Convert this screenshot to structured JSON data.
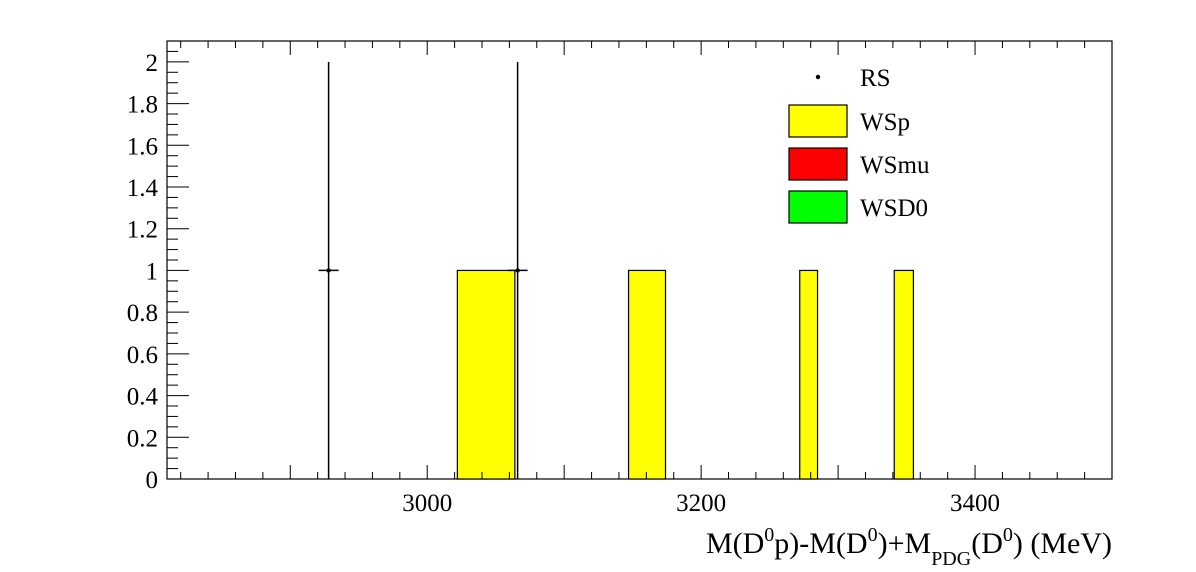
{
  "chart_data": {
    "type": "bar",
    "xlabel": {
      "parts": [
        "M(D",
        "0",
        "p)-M(D",
        "0",
        ")+M",
        "PDG",
        "(D",
        "0",
        ") (MeV)"
      ]
    },
    "ylabel": "",
    "xlim": [
      2810,
      3500
    ],
    "ylim": [
      0,
      2.1
    ],
    "x_ticks": [
      3000,
      3200,
      3400
    ],
    "x_tick_labels": [
      "3000",
      "3200",
      "3400"
    ],
    "y_ticks": [
      0,
      0.2,
      0.4,
      0.6,
      0.8,
      1,
      1.2,
      1.4,
      1.6,
      1.8,
      2
    ],
    "y_tick_labels": [
      "0",
      "0.2",
      "0.4",
      "0.6",
      "0.8",
      "1",
      "1.2",
      "1.4",
      "1.6",
      "1.8",
      "2"
    ],
    "series": [
      {
        "name": "RS",
        "kind": "points",
        "color": "#000000",
        "points": [
          {
            "x": 2928,
            "y": 1,
            "yerr_low": 1,
            "yerr_high": 1
          },
          {
            "x": 3066,
            "y": 1,
            "yerr_low": 1,
            "yerr_high": 1
          }
        ]
      },
      {
        "name": "WSp",
        "kind": "bars",
        "color": "#ffff00",
        "bars": [
          {
            "x0": 3022,
            "x1": 3064,
            "value": 1
          },
          {
            "x0": 3147,
            "x1": 3174,
            "value": 1
          },
          {
            "x0": 3272,
            "x1": 3285,
            "value": 1
          },
          {
            "x0": 3341,
            "x1": 3355,
            "value": 1
          }
        ]
      },
      {
        "name": "WSmu",
        "kind": "bars",
        "color": "#ff0000",
        "bars": []
      },
      {
        "name": "WSD0",
        "kind": "bars",
        "color": "#00ff00",
        "bars": []
      }
    ],
    "legend_position": "top-right",
    "grid": false
  }
}
